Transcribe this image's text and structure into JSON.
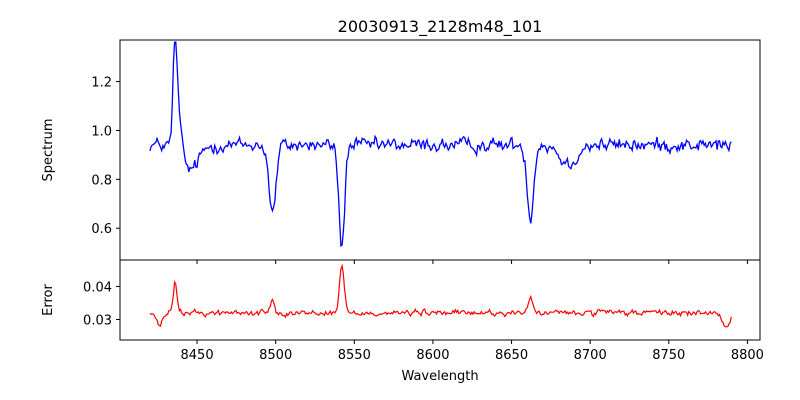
{
  "chart_data": [
    {
      "type": "line",
      "title": "20030913_2128m48_101",
      "xlabel": "",
      "ylabel": "Spectrum",
      "xlim": [
        8401,
        8808
      ],
      "ylim": [
        0.47,
        1.37
      ],
      "xticks": [
        "8450",
        "8500",
        "8550",
        "8600",
        "8650",
        "8700",
        "8750",
        "8800"
      ],
      "yticks": [
        "0.6",
        "0.8",
        "1.0",
        "1.2"
      ],
      "series": [
        {
          "color": "#0000ff",
          "x_range": [
            8420,
            8790
          ],
          "baseline": 0.94,
          "noise": 0.07,
          "features": [
            {
              "center": 8436,
              "depth": 0.4,
              "width": 1.2
            },
            {
              "center": 8438,
              "depth": 0.15,
              "width": 2.0
            },
            {
              "center": 8446,
              "depth": -0.1,
              "width": 5.0
            },
            {
              "center": 8498,
              "depth": -0.28,
              "width": 2.2
            },
            {
              "center": 8542,
              "depth": -0.42,
              "width": 1.8
            },
            {
              "center": 8662,
              "depth": -0.3,
              "width": 2.0
            },
            {
              "center": 8686,
              "depth": -0.08,
              "width": 5.0
            }
          ]
        }
      ]
    },
    {
      "type": "line",
      "title": "",
      "xlabel": "Wavelength",
      "ylabel": "Error",
      "xlim": [
        8401,
        8808
      ],
      "ylim": [
        0.0238,
        0.048
      ],
      "xticks": [
        "8450",
        "8500",
        "8550",
        "8600",
        "8650",
        "8700",
        "8750",
        "8800"
      ],
      "yticks": [
        "0.03",
        "0.04"
      ],
      "series": [
        {
          "color": "#ff0000",
          "x_range": [
            8420,
            8790
          ],
          "baseline": 0.032,
          "noise": 0.0022,
          "features": [
            {
              "center": 8436,
              "depth": 0.009,
              "width": 1.2
            },
            {
              "center": 8426,
              "depth": -0.004,
              "width": 2.0
            },
            {
              "center": 8498,
              "depth": 0.004,
              "width": 1.5
            },
            {
              "center": 8542,
              "depth": 0.014,
              "width": 1.5
            },
            {
              "center": 8662,
              "depth": 0.004,
              "width": 1.5
            },
            {
              "center": 8786,
              "depth": -0.004,
              "width": 3.0
            }
          ]
        }
      ]
    }
  ]
}
